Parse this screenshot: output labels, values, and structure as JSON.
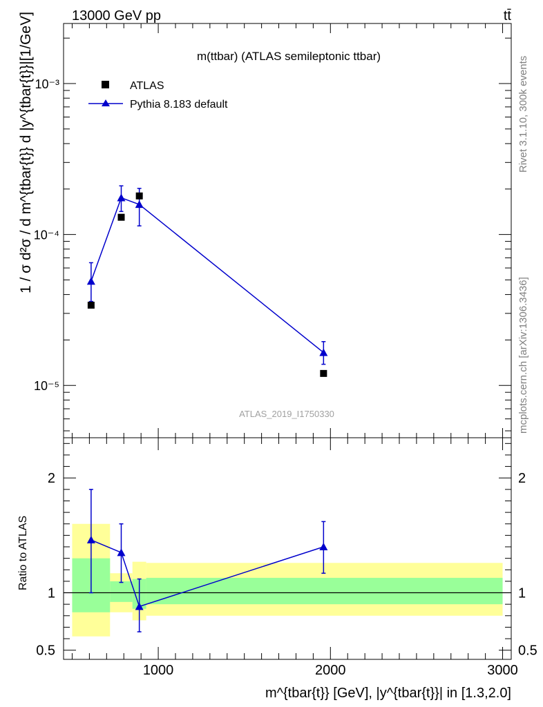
{
  "header": {
    "energy_label": "13000 GeV pp",
    "process_label": "tt̄"
  },
  "side_labels": {
    "rivet": "Rivet 3.1.10,  300k events",
    "mcplots": "mcplots.cern.ch [arXiv:1306.3436]"
  },
  "chart_data": [
    {
      "type": "scatter",
      "panel": "main",
      "title": "m(ttbar) (ATLAS semileptonic ttbar)",
      "analysis_tag": "ATLAS_2019_I1750330",
      "ylabel": "1 / σ d²σ / d m^{tbar{t}} d |y^{tbar{t}}|[1/GeV]",
      "yscale": "log",
      "xlim": [
        450,
        3050
      ],
      "ylim": [
        4.5e-06,
        0.0025
      ],
      "y_tick_labels": [
        "10⁻⁵",
        "10⁻⁴",
        "10⁻³"
      ],
      "legend_position": "top-left",
      "series": [
        {
          "name": "ATLAS",
          "marker": "square",
          "color": "#000000",
          "points": [
            {
              "x": 610,
              "y": 3.4e-05
            },
            {
              "x": 785,
              "y": 0.00013
            },
            {
              "x": 890,
              "y": 0.00018
            },
            {
              "x": 1960,
              "y": 1.2e-05
            }
          ]
        },
        {
          "name": "Pythia 8.183 default",
          "marker": "triangle",
          "color": "#0000cc",
          "points": [
            {
              "x": 610,
              "y": 4.9e-05,
              "ylo": 3.6e-05,
              "yhi": 6.5e-05
            },
            {
              "x": 785,
              "y": 0.000175,
              "ylo": 0.000142,
              "yhi": 0.00021
            },
            {
              "x": 890,
              "y": 0.000158,
              "ylo": 0.000114,
              "yhi": 0.000202
            },
            {
              "x": 1960,
              "y": 1.65e-05,
              "ylo": 1.38e-05,
              "yhi": 1.95e-05
            }
          ]
        }
      ]
    },
    {
      "type": "scatter",
      "panel": "ratio",
      "xlabel": "m^{tbar{t}} [GeV], |y^{tbar{t}}| in [1.3,2.0]",
      "ylabel": "Ratio to ATLAS",
      "xlim": [
        450,
        3050
      ],
      "ylim": [
        0.42,
        2.35
      ],
      "x_ticks": [
        1000,
        2000,
        3000
      ],
      "x_tick_labels": [
        "1000",
        "2000",
        "3000"
      ],
      "y_ticks": [
        0.5,
        1,
        2
      ],
      "y_tick_labels": [
        "0.5",
        "1",
        "2"
      ],
      "reference_line": 1,
      "bands": [
        {
          "x0": 500,
          "x1": 720,
          "yellow": [
            0.62,
            1.6
          ],
          "green": [
            0.83,
            1.3
          ]
        },
        {
          "x0": 720,
          "x1": 850,
          "yellow": [
            0.83,
            1.17
          ],
          "green": [
            0.92,
            1.1
          ]
        },
        {
          "x0": 850,
          "x1": 930,
          "yellow": [
            0.76,
            1.27
          ],
          "green": [
            0.86,
            1.12
          ]
        },
        {
          "x0": 930,
          "x1": 3000,
          "yellow": [
            0.8,
            1.26
          ],
          "green": [
            0.9,
            1.13
          ]
        }
      ],
      "series": [
        {
          "name": "Pythia 8.183 default",
          "color": "#0000cc",
          "points": [
            {
              "x": 610,
              "y": 1.46,
              "ylo": 1.0,
              "yhi": 1.9
            },
            {
              "x": 785,
              "y": 1.35,
              "ylo": 1.09,
              "yhi": 1.6
            },
            {
              "x": 890,
              "y": 0.88,
              "ylo": 0.66,
              "yhi": 1.12
            },
            {
              "x": 1960,
              "y": 1.4,
              "ylo": 1.17,
              "yhi": 1.62
            }
          ]
        }
      ]
    }
  ]
}
